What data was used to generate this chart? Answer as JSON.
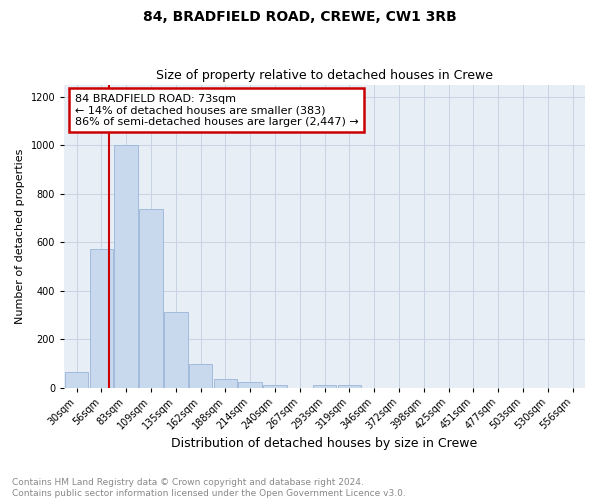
{
  "title": "84, BRADFIELD ROAD, CREWE, CW1 3RB",
  "subtitle": "Size of property relative to detached houses in Crewe",
  "xlabel": "Distribution of detached houses by size in Crewe",
  "ylabel": "Number of detached properties",
  "bin_labels": [
    "30sqm",
    "56sqm",
    "83sqm",
    "109sqm",
    "135sqm",
    "162sqm",
    "188sqm",
    "214sqm",
    "240sqm",
    "267sqm",
    "293sqm",
    "319sqm",
    "346sqm",
    "372sqm",
    "398sqm",
    "425sqm",
    "451sqm",
    "477sqm",
    "503sqm",
    "530sqm",
    "556sqm"
  ],
  "bar_values": [
    62,
    570,
    1000,
    735,
    310,
    95,
    35,
    22,
    12,
    0,
    12,
    10,
    0,
    0,
    0,
    0,
    0,
    0,
    0,
    0,
    0
  ],
  "bar_color": "#c8d9ee",
  "bar_edge_color": "#9ab5d8",
  "red_line_x": 1.13,
  "annotation_text_line1": "84 BRADFIELD ROAD: 73sqm",
  "annotation_text_line2": "← 14% of detached houses are smaller (383)",
  "annotation_text_line3": "86% of semi-detached houses are larger (2,447) →",
  "annotation_box_color": "#ffffff",
  "annotation_box_edge": "#cc0000",
  "red_line_color": "#cc0000",
  "ylim": [
    0,
    1250
  ],
  "yticks": [
    0,
    200,
    400,
    600,
    800,
    1000,
    1200
  ],
  "footer_line1": "Contains HM Land Registry data © Crown copyright and database right 2024.",
  "footer_line2": "Contains public sector information licensed under the Open Government Licence v3.0.",
  "bg_color": "#ffffff",
  "plot_bg_color": "#e8eef5",
  "grid_color": "#c8d4e4",
  "title_fontsize": 10,
  "subtitle_fontsize": 9,
  "xlabel_fontsize": 9,
  "ylabel_fontsize": 8,
  "tick_fontsize": 7,
  "annotation_fontsize": 8,
  "footer_fontsize": 6.5
}
